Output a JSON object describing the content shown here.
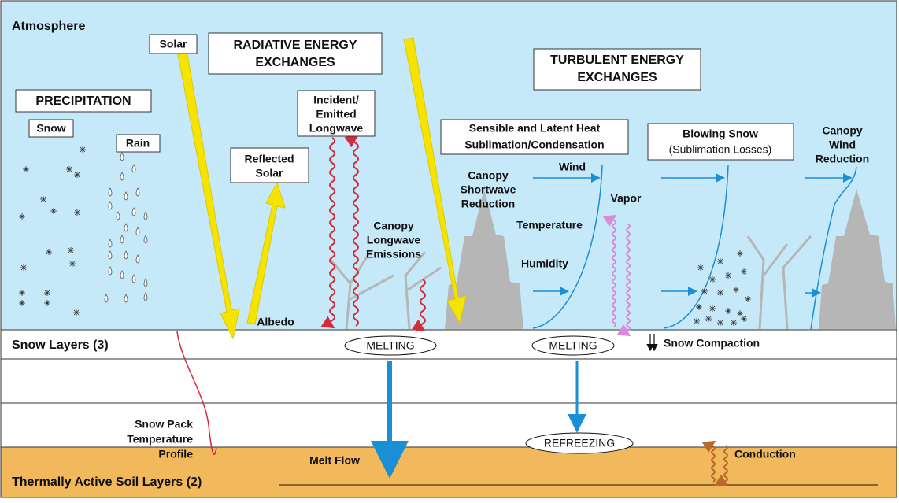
{
  "atmosphere": "Atmosphere",
  "solar": "Solar",
  "radiative": [
    "RADIATIVE ENERGY",
    "EXCHANGES"
  ],
  "turbulent": [
    "TURBULENT ENERGY",
    "EXCHANGES"
  ],
  "precipitation": "PRECIPITATION",
  "snow": "Snow",
  "rain": "Rain",
  "longwave": [
    "Incident/",
    "Emitted",
    "Longwave"
  ],
  "reflected": [
    "Reflected",
    "Solar"
  ],
  "sensible": [
    "Sensible and Latent Heat",
    "Sublimation/Condensation"
  ],
  "blowing": [
    "Blowing Snow",
    "(Sublimation Losses)"
  ],
  "canopy_wind": [
    "Canopy",
    "Wind",
    "Reduction"
  ],
  "canopy_shortwave": [
    "Canopy",
    "Shortwave",
    "Reduction"
  ],
  "canopy_longwave": [
    "Canopy",
    "Longwave",
    "Emissions"
  ],
  "wind": "Wind",
  "vapor": "Vapor",
  "temperature": "Temperature",
  "humidity": "Humidity",
  "albedo": "Albedo",
  "snow_layers": "Snow Layers (3)",
  "melting": [
    "MELTING",
    "MELTING"
  ],
  "snow_compaction": "Snow Compaction",
  "temperature_profile": [
    "Snow Pack",
    "Temperature",
    "Profile"
  ],
  "melt_flow": "Melt Flow",
  "refreezing": "REFREEZING",
  "conduction": "Conduction",
  "soil_layers": "Thermally Active Soil Layers (2)"
}
